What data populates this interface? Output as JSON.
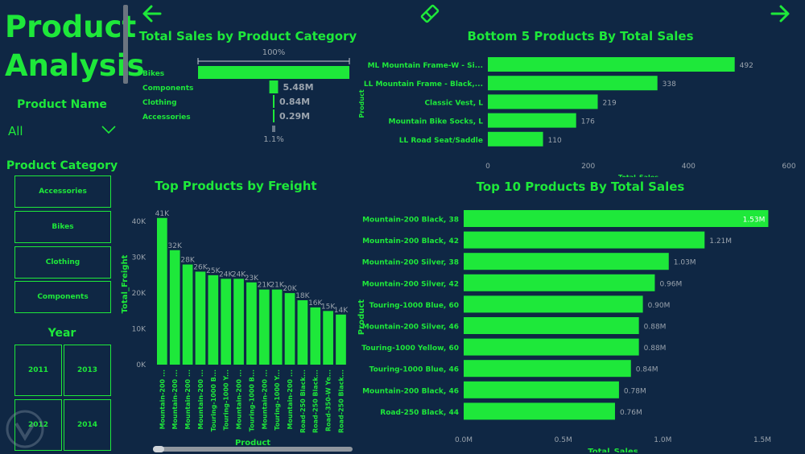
{
  "header": {
    "title": "Product Analysis"
  },
  "slicers": {
    "product_name": {
      "title": "Product Name",
      "value": "All"
    },
    "product_category": {
      "title": "Product Category",
      "options": [
        "Accessories",
        "Bikes",
        "Clothing",
        "Components"
      ]
    },
    "year": {
      "title": "Year",
      "options": [
        "2011",
        "2013",
        "2012",
        "2014"
      ]
    }
  },
  "nav": {
    "back_icon": "arrow-left-icon",
    "forward_icon": "arrow-right-icon",
    "eraser_icon": "eraser-icon"
  },
  "colors": {
    "background": "#0f2744",
    "accent": "#1ee83a",
    "muted_text": "#9aa3ad"
  },
  "chart_data": [
    {
      "id": "funnel",
      "type": "bar",
      "title": "Total Sales by Product Category",
      "categories": [
        "Bikes",
        "Components",
        "Clothing",
        "Accessories"
      ],
      "values": [
        94.65,
        5.48,
        0.84,
        0.29
      ],
      "value_labels": [
        "",
        "5.48M",
        "0.84M",
        "0.29M"
      ],
      "top_label": "100%",
      "bottom_label": "1.1%"
    },
    {
      "id": "bottom5",
      "type": "bar",
      "orientation": "horizontal",
      "title": "Bottom 5 Products By Total Sales",
      "categories": [
        "ML Mountain Frame-W - Si...",
        "LL Mountain Frame - Black,...",
        "Classic Vest, L",
        "Mountain Bike Socks, L",
        "LL Road Seat/Saddle"
      ],
      "values": [
        492,
        338,
        219,
        176,
        110
      ],
      "xlabel": "Total_Sales",
      "ylabel": "Product",
      "xlim": [
        0,
        600
      ],
      "xticks": [
        "0",
        "200",
        "400",
        "600"
      ]
    },
    {
      "id": "freight",
      "type": "bar",
      "title": "Top Products by Freight",
      "categories": [
        "Mountain-200 ...",
        "Mountain-200 ...",
        "Mountain-200 ...",
        "Mountain-200 ...",
        "Touring-1000 B...",
        "Touring-1000 Y...",
        "Mountain-200 ...",
        "Touring-1000 B...",
        "Mountain-200 ...",
        "Touring-1000 Y...",
        "Mountain-200 ...",
        "Road-250 Black...",
        "Road-250 Black...",
        "Road-350-W Ye...",
        "Road-250 Black..."
      ],
      "values": [
        41,
        32,
        28,
        26,
        25,
        24,
        24,
        23,
        21,
        21,
        20,
        18,
        16,
        15,
        14
      ],
      "value_labels": [
        "41K",
        "32K",
        "28K",
        "26K",
        "25K",
        "24K",
        "24K",
        "23K",
        "21K",
        "21K",
        "20K",
        "18K",
        "16K",
        "15K",
        "14K"
      ],
      "xlabel": "Product",
      "ylabel": "Total_Freight",
      "ylim": [
        0,
        45
      ],
      "yticks": [
        "0K",
        "10K",
        "20K",
        "30K",
        "40K"
      ]
    },
    {
      "id": "top10",
      "type": "bar",
      "orientation": "horizontal",
      "title": "Top 10 Products By Total Sales",
      "categories": [
        "Mountain-200 Black, 38",
        "Mountain-200 Black, 42",
        "Mountain-200 Silver, 38",
        "Mountain-200 Silver, 42",
        "Touring-1000 Blue, 60",
        "Mountain-200 Silver, 46",
        "Touring-1000 Yellow, 60",
        "Touring-1000 Blue, 46",
        "Mountain-200 Black, 46",
        "Road-250 Black, 44"
      ],
      "values": [
        1.53,
        1.21,
        1.03,
        0.96,
        0.9,
        0.88,
        0.88,
        0.84,
        0.78,
        0.76
      ],
      "value_labels": [
        "1.53M",
        "1.21M",
        "1.03M",
        "0.96M",
        "0.90M",
        "0.88M",
        "0.88M",
        "0.84M",
        "0.78M",
        "0.76M"
      ],
      "xlabel": "Total_Sales",
      "ylabel": "Product",
      "xlim": [
        0,
        1.5
      ],
      "xticks": [
        "0.0M",
        "0.5M",
        "1.0M",
        "1.5M"
      ]
    }
  ]
}
